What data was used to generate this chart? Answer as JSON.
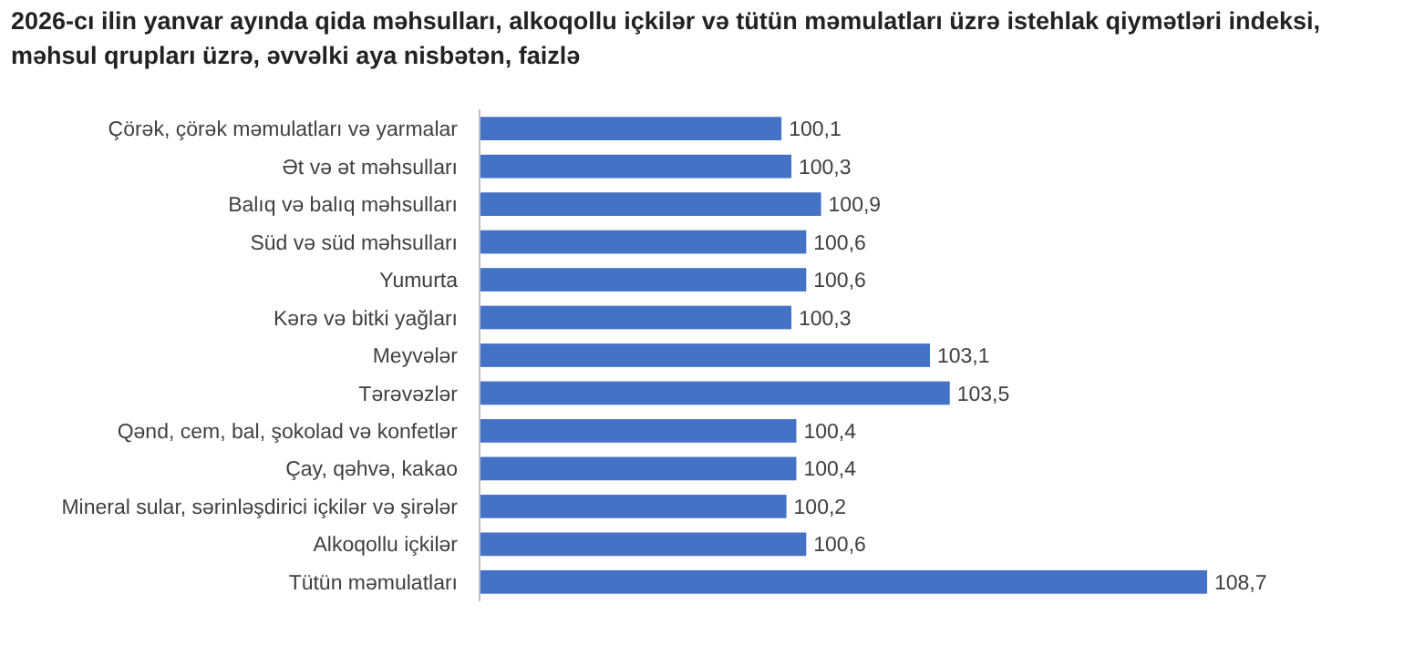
{
  "chart_data": {
    "type": "bar",
    "orientation": "horizontal",
    "title": "2026-cı ilin yanvar ayında qida məhsulları, alkoqollu içkilər və tütün məmulatları üzrə istehlak qiymətləri indeksi, məhsul qrupları üzrə, əvvəlki aya nisbətən, faizlə",
    "categories": [
      "Çörək, çörək məmulatları və yarmalar",
      "Ət və ət məhsulları",
      "Balıq və balıq məhsulları",
      "Süd və süd məhsulları",
      "Yumurta",
      "Kərə və bitki yağları",
      "Meyvələr",
      "Tərəvəzlər",
      "Qənd, cem, bal, şokolad və konfetlər",
      "Çay, qəhvə, kakao",
      "Mineral sular, sərinləşdirici içkilər və şirələr",
      "Alkoqollu içkilər",
      "Tütün məmulatları"
    ],
    "values": [
      100.1,
      100.3,
      100.9,
      100.6,
      100.6,
      100.3,
      103.1,
      103.5,
      100.4,
      100.4,
      100.2,
      100.6,
      108.7
    ],
    "value_labels": [
      "100,1",
      "100,3",
      "100,9",
      "100,6",
      "100,6",
      "100,3",
      "103,1",
      "103,5",
      "100,4",
      "100,4",
      "100,2",
      "100,6",
      "108,7"
    ],
    "color": "#4472c4",
    "xlim": [
      94,
      108.7
    ]
  }
}
